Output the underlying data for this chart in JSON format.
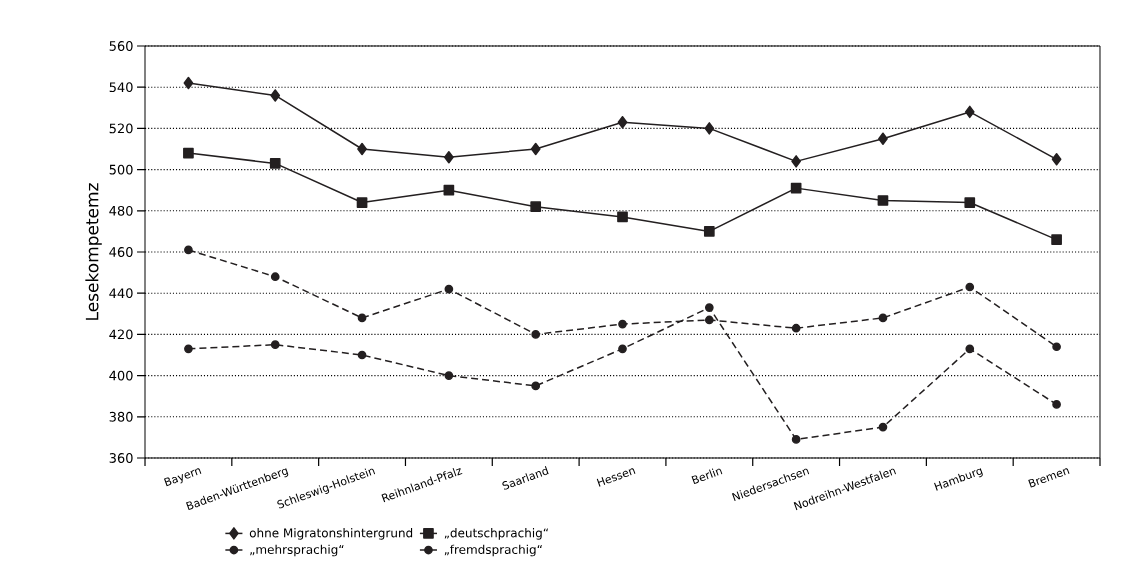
{
  "chart_data": {
    "type": "line",
    "ylabel": "Lesekompetemz",
    "categories": [
      "Bayern",
      "Baden-Württenberg",
      "Schleswig-Holstein",
      "Reihnland-Pfalz",
      "Saarland",
      "Hessen",
      "Berlin",
      "Niedersachsen",
      "Nodreihn-Westfalen",
      "Hamburg",
      "Bremen"
    ],
    "series": [
      {
        "name": "ohne Migratonshintergrund",
        "color": "#231f20",
        "marker": "diamond",
        "line_style": "solid",
        "values": [
          542,
          536,
          510,
          506,
          510,
          523,
          520,
          504,
          515,
          528,
          505
        ]
      },
      {
        "name": "„deutschprachig“",
        "color": "#231f20",
        "marker": "square",
        "line_style": "solid",
        "values": [
          508,
          503,
          484,
          490,
          482,
          477,
          470,
          491,
          485,
          484,
          466
        ]
      },
      {
        "name": "„mehrsprachig“",
        "color": "#231f20",
        "marker": "circle",
        "line_style": "dashed",
        "values": [
          461,
          448,
          428,
          442,
          420,
          425,
          427,
          423,
          428,
          443,
          414
        ]
      },
      {
        "name": "„fremdsprachig“",
        "color": "#231f20",
        "marker": "circle",
        "line_style": "dashed",
        "values": [
          413,
          415,
          410,
          400,
          395,
          413,
          433,
          369,
          375,
          413,
          386
        ]
      }
    ],
    "ylim": [
      360,
      560
    ],
    "yticks": [
      360,
      380,
      400,
      420,
      440,
      460,
      480,
      500,
      520,
      540,
      560
    ],
    "grid": "y",
    "legend": "bottom"
  }
}
